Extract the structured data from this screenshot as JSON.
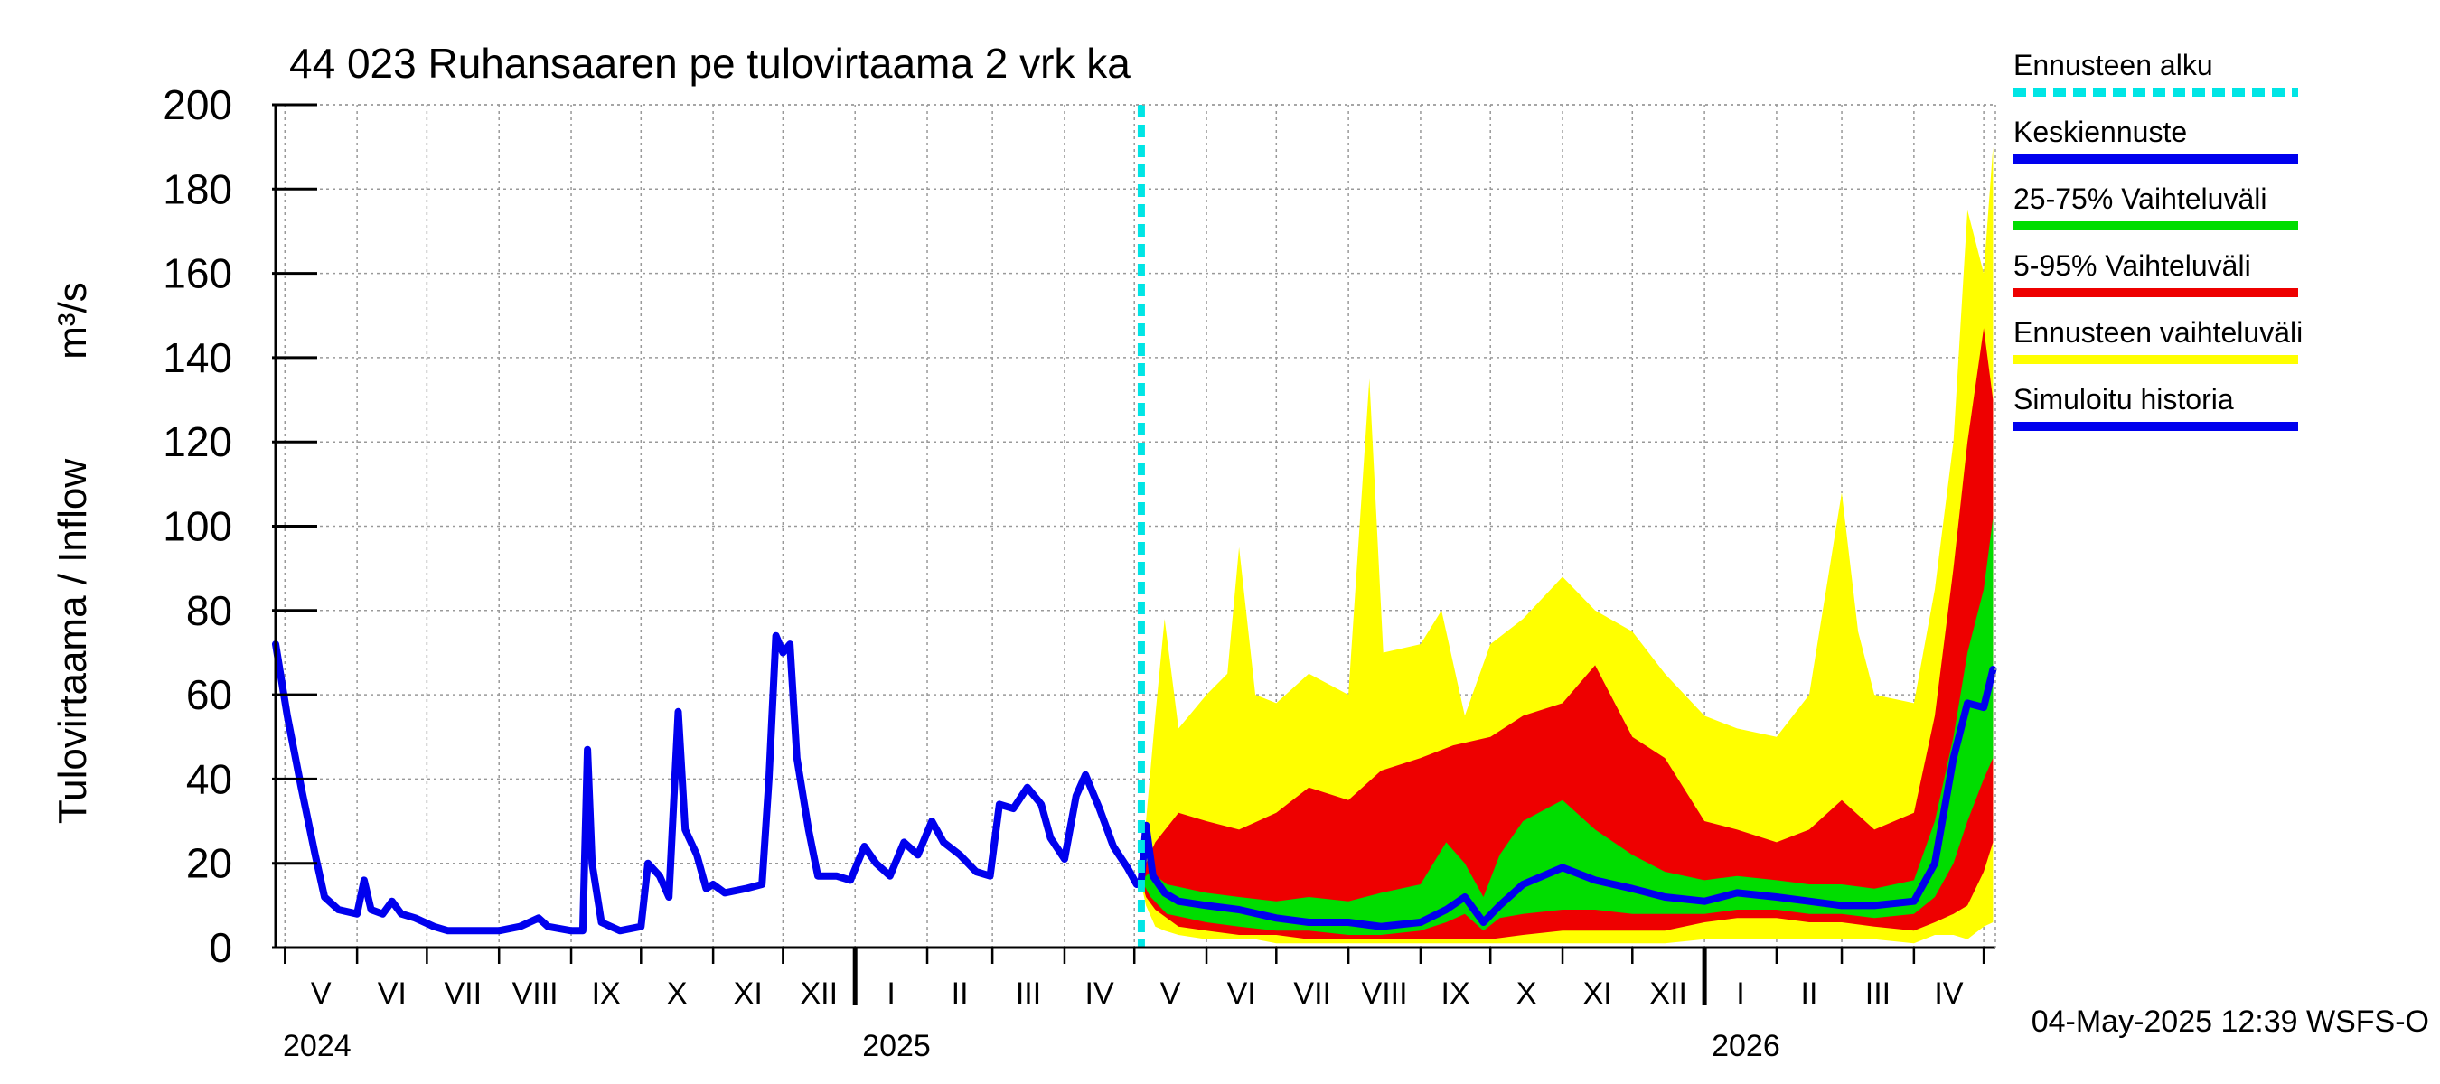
{
  "chart_data": {
    "type": "area",
    "title": "44 023 Ruhansaaren pe tulovirtaama 2 vrk ka",
    "ylabel": "Tulovirtaama / Inflow",
    "yunit": "m³/s",
    "ylim": [
      0,
      200
    ],
    "yticks": [
      0,
      20,
      40,
      60,
      80,
      100,
      120,
      140,
      160,
      180,
      200
    ],
    "xlim": [
      "2024-04-27",
      "2026-05-06"
    ],
    "grid": true,
    "legend_position": "right",
    "timestamp": "04-May-2025 12:39 WSFS-O",
    "forecast_start": "2025-05-04",
    "months": [
      {
        "label": "V",
        "start": "2024-05-01"
      },
      {
        "label": "VI",
        "start": "2024-06-01"
      },
      {
        "label": "VII",
        "start": "2024-07-01"
      },
      {
        "label": "VIII",
        "start": "2024-08-01"
      },
      {
        "label": "IX",
        "start": "2024-09-01"
      },
      {
        "label": "X",
        "start": "2024-10-01"
      },
      {
        "label": "XI",
        "start": "2024-11-01"
      },
      {
        "label": "XII",
        "start": "2024-12-01"
      },
      {
        "label": "I",
        "start": "2025-01-01"
      },
      {
        "label": "II",
        "start": "2025-02-01"
      },
      {
        "label": "III",
        "start": "2025-03-01"
      },
      {
        "label": "IV",
        "start": "2025-04-01"
      },
      {
        "label": "V",
        "start": "2025-05-01"
      },
      {
        "label": "VI",
        "start": "2025-06-01"
      },
      {
        "label": "VII",
        "start": "2025-07-01"
      },
      {
        "label": "VIII",
        "start": "2025-08-01"
      },
      {
        "label": "IX",
        "start": "2025-09-01"
      },
      {
        "label": "X",
        "start": "2025-10-01"
      },
      {
        "label": "XI",
        "start": "2025-11-01"
      },
      {
        "label": "XII",
        "start": "2025-12-01"
      },
      {
        "label": "I",
        "start": "2026-01-01"
      },
      {
        "label": "II",
        "start": "2026-02-01"
      },
      {
        "label": "III",
        "start": "2026-03-01"
      },
      {
        "label": "IV",
        "start": "2026-04-01"
      },
      {
        "label": "V",
        "start": "2026-05-01"
      }
    ],
    "years": [
      {
        "label": "2024",
        "start": "2024-04-27"
      },
      {
        "label": "2025",
        "start": "2025-01-01"
      },
      {
        "label": "2026",
        "start": "2026-01-01"
      }
    ],
    "legend": [
      {
        "label": "Ennusteen alku",
        "color": "#00e5e5",
        "style": "dashed"
      },
      {
        "label": "Keskiennuste",
        "color": "#0000ee",
        "style": "solid"
      },
      {
        "label": "25-75% Vaihteluväli",
        "color": "#00dd00",
        "style": "solid"
      },
      {
        "label": "5-95% Vaihteluväli",
        "color": "#ee0000",
        "style": "solid"
      },
      {
        "label": "Ennusteen vaihteluväli",
        "color": "#ffff00",
        "style": "solid"
      },
      {
        "label": "Simuloitu historia",
        "color": "#0000ee",
        "style": "solid"
      }
    ],
    "series": [
      {
        "name": "Simuloitu historia",
        "color": "#0000ee",
        "points": [
          [
            "2024-04-27",
            72
          ],
          [
            "2024-05-02",
            55
          ],
          [
            "2024-05-08",
            38
          ],
          [
            "2024-05-14",
            22
          ],
          [
            "2024-05-18",
            12
          ],
          [
            "2024-05-24",
            9
          ],
          [
            "2024-06-01",
            8
          ],
          [
            "2024-06-04",
            16
          ],
          [
            "2024-06-07",
            9
          ],
          [
            "2024-06-12",
            8
          ],
          [
            "2024-06-16",
            11
          ],
          [
            "2024-06-20",
            8
          ],
          [
            "2024-06-26",
            7
          ],
          [
            "2024-07-04",
            5
          ],
          [
            "2024-07-10",
            4
          ],
          [
            "2024-07-20",
            4
          ],
          [
            "2024-08-01",
            4
          ],
          [
            "2024-08-10",
            5
          ],
          [
            "2024-08-18",
            7
          ],
          [
            "2024-08-22",
            5
          ],
          [
            "2024-09-01",
            4
          ],
          [
            "2024-09-06",
            4
          ],
          [
            "2024-09-08",
            47
          ],
          [
            "2024-09-10",
            20
          ],
          [
            "2024-09-14",
            6
          ],
          [
            "2024-09-22",
            4
          ],
          [
            "2024-10-01",
            5
          ],
          [
            "2024-10-04",
            20
          ],
          [
            "2024-10-09",
            17
          ],
          [
            "2024-10-13",
            12
          ],
          [
            "2024-10-17",
            56
          ],
          [
            "2024-10-20",
            28
          ],
          [
            "2024-10-25",
            22
          ],
          [
            "2024-10-29",
            14
          ],
          [
            "2024-11-01",
            15
          ],
          [
            "2024-11-06",
            13
          ],
          [
            "2024-11-15",
            14
          ],
          [
            "2024-11-22",
            15
          ],
          [
            "2024-11-25",
            40
          ],
          [
            "2024-11-28",
            74
          ],
          [
            "2024-12-01",
            70
          ],
          [
            "2024-12-04",
            72
          ],
          [
            "2024-12-07",
            45
          ],
          [
            "2024-12-12",
            28
          ],
          [
            "2024-12-16",
            17
          ],
          [
            "2024-12-24",
            17
          ],
          [
            "2024-12-30",
            16
          ],
          [
            "2025-01-05",
            24
          ],
          [
            "2025-01-10",
            20
          ],
          [
            "2025-01-16",
            17
          ],
          [
            "2025-01-22",
            25
          ],
          [
            "2025-01-28",
            22
          ],
          [
            "2025-02-03",
            30
          ],
          [
            "2025-02-08",
            25
          ],
          [
            "2025-02-15",
            22
          ],
          [
            "2025-02-22",
            18
          ],
          [
            "2025-02-28",
            17
          ],
          [
            "2025-03-04",
            34
          ],
          [
            "2025-03-10",
            33
          ],
          [
            "2025-03-16",
            38
          ],
          [
            "2025-03-22",
            34
          ],
          [
            "2025-03-26",
            26
          ],
          [
            "2025-04-01",
            21
          ],
          [
            "2025-04-06",
            36
          ],
          [
            "2025-04-10",
            41
          ],
          [
            "2025-04-16",
            33
          ],
          [
            "2025-04-22",
            24
          ],
          [
            "2025-04-28",
            19
          ],
          [
            "2025-05-02",
            15
          ],
          [
            "2025-05-04",
            16
          ]
        ]
      },
      {
        "name": "Keskiennuste",
        "color": "#0000ee",
        "points": [
          [
            "2025-05-04",
            16
          ],
          [
            "2025-05-06",
            29
          ],
          [
            "2025-05-09",
            17
          ],
          [
            "2025-05-14",
            13
          ],
          [
            "2025-05-20",
            11
          ],
          [
            "2025-06-01",
            10
          ],
          [
            "2025-06-15",
            9
          ],
          [
            "2025-07-01",
            7
          ],
          [
            "2025-07-15",
            6
          ],
          [
            "2025-08-01",
            6
          ],
          [
            "2025-08-15",
            5
          ],
          [
            "2025-09-01",
            6
          ],
          [
            "2025-09-12",
            9
          ],
          [
            "2025-09-20",
            12
          ],
          [
            "2025-09-28",
            6
          ],
          [
            "2025-10-05",
            10
          ],
          [
            "2025-10-15",
            15
          ],
          [
            "2025-11-01",
            19
          ],
          [
            "2025-11-15",
            16
          ],
          [
            "2025-12-01",
            14
          ],
          [
            "2025-12-15",
            12
          ],
          [
            "2026-01-01",
            11
          ],
          [
            "2026-01-15",
            13
          ],
          [
            "2026-02-01",
            12
          ],
          [
            "2026-02-15",
            11
          ],
          [
            "2026-03-01",
            10
          ],
          [
            "2026-03-15",
            10
          ],
          [
            "2026-04-01",
            11
          ],
          [
            "2026-04-10",
            20
          ],
          [
            "2026-04-18",
            45
          ],
          [
            "2026-04-24",
            58
          ],
          [
            "2026-05-01",
            57
          ],
          [
            "2026-05-05",
            66
          ]
        ]
      }
    ],
    "bands": [
      {
        "name": "Ennusteen vaihteluväli",
        "color": "#ffff00",
        "points": [
          [
            "2025-05-04",
            15,
            16
          ],
          [
            "2025-05-06",
            10,
            30
          ],
          [
            "2025-05-10",
            5,
            55
          ],
          [
            "2025-05-14",
            4,
            78
          ],
          [
            "2025-05-20",
            3,
            52
          ],
          [
            "2025-06-01",
            2,
            60
          ],
          [
            "2025-06-10",
            2,
            65
          ],
          [
            "2025-06-15",
            2,
            95
          ],
          [
            "2025-06-22",
            2,
            60
          ],
          [
            "2025-07-01",
            1,
            58
          ],
          [
            "2025-07-15",
            1,
            65
          ],
          [
            "2025-08-01",
            1,
            60
          ],
          [
            "2025-08-10",
            1,
            135
          ],
          [
            "2025-08-16",
            1,
            70
          ],
          [
            "2025-09-01",
            1,
            72
          ],
          [
            "2025-09-10",
            1,
            80
          ],
          [
            "2025-09-20",
            1,
            55
          ],
          [
            "2025-10-01",
            1,
            72
          ],
          [
            "2025-10-15",
            1,
            78
          ],
          [
            "2025-11-01",
            1,
            88
          ],
          [
            "2025-11-15",
            1,
            80
          ],
          [
            "2025-12-01",
            1,
            75
          ],
          [
            "2025-12-15",
            1,
            65
          ],
          [
            "2026-01-01",
            2,
            55
          ],
          [
            "2026-01-15",
            2,
            52
          ],
          [
            "2026-02-01",
            2,
            50
          ],
          [
            "2026-02-15",
            2,
            60
          ],
          [
            "2026-03-01",
            2,
            108
          ],
          [
            "2026-03-08",
            2,
            75
          ],
          [
            "2026-03-15",
            2,
            60
          ],
          [
            "2026-04-01",
            1,
            58
          ],
          [
            "2026-04-10",
            3,
            85
          ],
          [
            "2026-04-18",
            3,
            120
          ],
          [
            "2026-04-24",
            2,
            175
          ],
          [
            "2026-05-01",
            5,
            160
          ],
          [
            "2026-05-05",
            6,
            190
          ]
        ]
      },
      {
        "name": "5-95% Vaihteluväli",
        "color": "#ee0000",
        "points": [
          [
            "2025-05-04",
            16,
            16
          ],
          [
            "2025-05-06",
            12,
            20
          ],
          [
            "2025-05-10",
            9,
            25
          ],
          [
            "2025-05-20",
            5,
            32
          ],
          [
            "2025-06-01",
            4,
            30
          ],
          [
            "2025-06-15",
            3,
            28
          ],
          [
            "2025-07-01",
            3,
            32
          ],
          [
            "2025-07-15",
            2,
            38
          ],
          [
            "2025-08-01",
            2,
            35
          ],
          [
            "2025-08-15",
            2,
            42
          ],
          [
            "2025-09-01",
            2,
            45
          ],
          [
            "2025-09-15",
            2,
            48
          ],
          [
            "2025-10-01",
            2,
            50
          ],
          [
            "2025-10-15",
            3,
            55
          ],
          [
            "2025-11-01",
            4,
            58
          ],
          [
            "2025-11-15",
            4,
            67
          ],
          [
            "2025-12-01",
            4,
            50
          ],
          [
            "2025-12-15",
            4,
            45
          ],
          [
            "2026-01-01",
            6,
            30
          ],
          [
            "2026-01-15",
            7,
            28
          ],
          [
            "2026-02-01",
            7,
            25
          ],
          [
            "2026-02-15",
            6,
            28
          ],
          [
            "2026-03-01",
            6,
            35
          ],
          [
            "2026-03-15",
            5,
            28
          ],
          [
            "2026-04-01",
            4,
            32
          ],
          [
            "2026-04-10",
            6,
            55
          ],
          [
            "2026-04-18",
            8,
            90
          ],
          [
            "2026-04-24",
            10,
            120
          ],
          [
            "2026-05-01",
            18,
            147
          ],
          [
            "2026-05-05",
            25,
            130
          ]
        ]
      },
      {
        "name": "25-75% Vaihteluväli",
        "color": "#00dd00",
        "points": [
          [
            "2025-05-04",
            16,
            16
          ],
          [
            "2025-05-08",
            12,
            18
          ],
          [
            "2025-05-15",
            8,
            15
          ],
          [
            "2025-06-01",
            6,
            13
          ],
          [
            "2025-06-15",
            5,
            12
          ],
          [
            "2025-07-01",
            4,
            11
          ],
          [
            "2025-07-15",
            4,
            12
          ],
          [
            "2025-08-01",
            3,
            11
          ],
          [
            "2025-08-15",
            3,
            13
          ],
          [
            "2025-09-01",
            4,
            15
          ],
          [
            "2025-09-12",
            6,
            25
          ],
          [
            "2025-09-20",
            8,
            20
          ],
          [
            "2025-09-28",
            4,
            12
          ],
          [
            "2025-10-05",
            7,
            22
          ],
          [
            "2025-10-15",
            8,
            30
          ],
          [
            "2025-11-01",
            9,
            35
          ],
          [
            "2025-11-15",
            9,
            28
          ],
          [
            "2025-12-01",
            8,
            22
          ],
          [
            "2025-12-15",
            8,
            18
          ],
          [
            "2026-01-01",
            8,
            16
          ],
          [
            "2026-01-15",
            9,
            17
          ],
          [
            "2026-02-01",
            9,
            16
          ],
          [
            "2026-02-15",
            8,
            15
          ],
          [
            "2026-03-01",
            8,
            15
          ],
          [
            "2026-03-15",
            7,
            14
          ],
          [
            "2026-04-01",
            8,
            16
          ],
          [
            "2026-04-10",
            12,
            30
          ],
          [
            "2026-04-18",
            20,
            50
          ],
          [
            "2026-04-24",
            30,
            70
          ],
          [
            "2026-05-01",
            40,
            85
          ],
          [
            "2026-05-05",
            45,
            102
          ]
        ]
      }
    ]
  }
}
